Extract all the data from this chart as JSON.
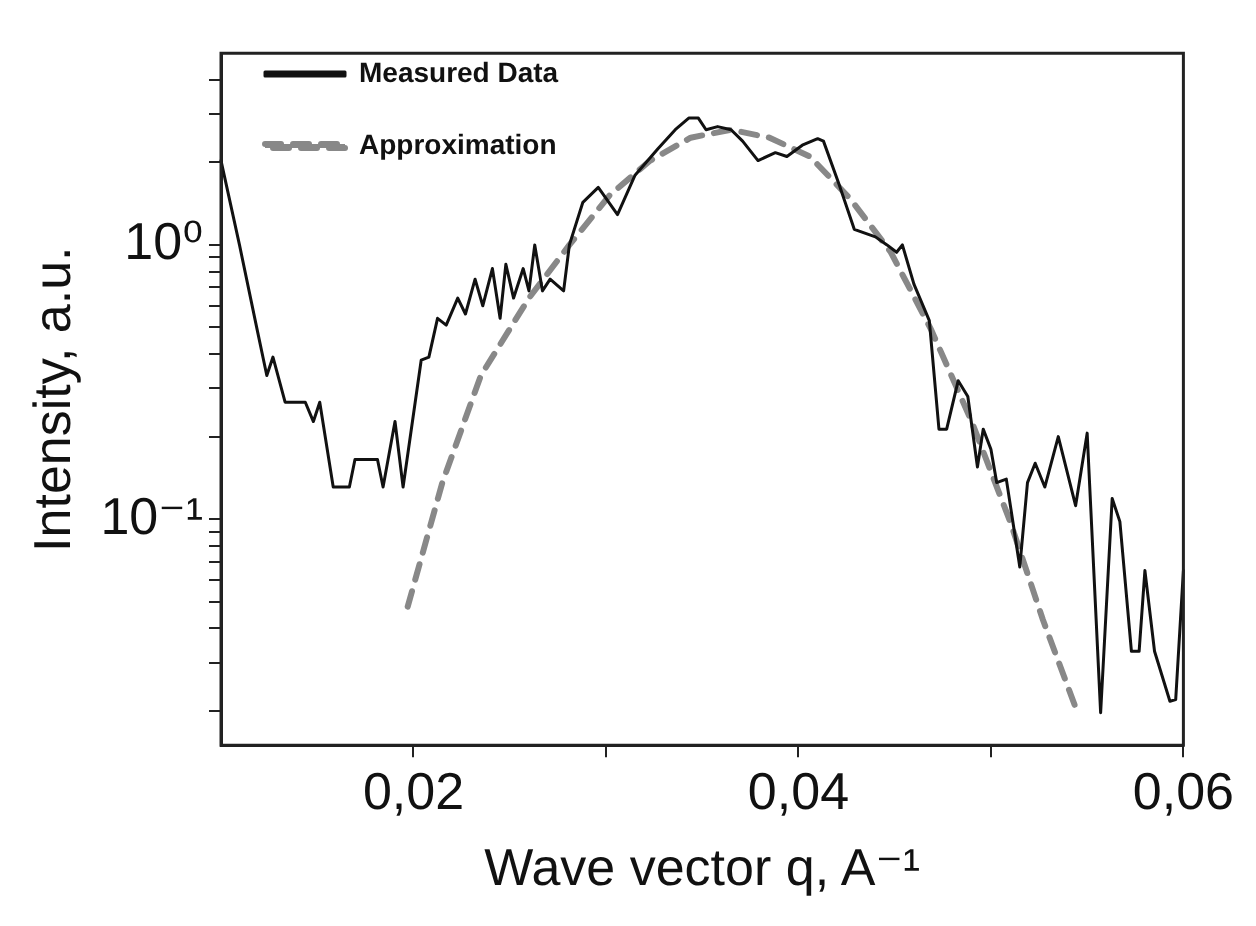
{
  "chart_data": {
    "type": "line",
    "xlabel": "Wave vector q, A⁻¹",
    "ylabel": "Intensity, a.u.",
    "log": "y",
    "grid": false,
    "legend": "top left",
    "xlim": [
      0.01,
      0.06
    ],
    "ylim": [
      0.015,
      5
    ],
    "xticks": [
      {
        "value": 0.02,
        "label": "0,02"
      },
      {
        "value": 0.03,
        "label": null
      },
      {
        "value": 0.04,
        "label": "0,04"
      },
      {
        "value": 0.05,
        "label": null
      },
      {
        "value": 0.06,
        "label": "0,06"
      }
    ],
    "yticks": [
      {
        "value": 0.02,
        "label": null
      },
      {
        "value": 0.03,
        "label": null
      },
      {
        "value": 0.04,
        "label": null
      },
      {
        "value": 0.05,
        "label": null
      },
      {
        "value": 0.06,
        "label": null
      },
      {
        "value": 0.07,
        "label": null
      },
      {
        "value": 0.08,
        "label": null
      },
      {
        "value": 0.09,
        "label": null
      },
      {
        "value": 0.1,
        "label": "10⁻¹"
      },
      {
        "value": 0.2,
        "label": null
      },
      {
        "value": 0.3,
        "label": null
      },
      {
        "value": 0.4,
        "label": null
      },
      {
        "value": 0.5,
        "label": null
      },
      {
        "value": 0.6,
        "label": null
      },
      {
        "value": 0.7,
        "label": null
      },
      {
        "value": 0.8,
        "label": null
      },
      {
        "value": 0.9,
        "label": null
      },
      {
        "value": 1,
        "label": "10⁰"
      },
      {
        "value": 2,
        "label": null
      },
      {
        "value": 3,
        "label": null
      },
      {
        "value": 4,
        "label": null
      }
    ],
    "series": [
      {
        "name": "Measured Data",
        "color": "#111111",
        "line_style": "solid",
        "marker": "none",
        "x": [
          0.01,
          0.01096,
          0.01188,
          0.01238,
          0.0127,
          0.01333,
          0.01438,
          0.0148,
          0.01513,
          0.01583,
          0.01667,
          0.01696,
          0.01813,
          0.01842,
          0.01904,
          0.01946,
          0.0204,
          0.0208,
          0.02125,
          0.0217,
          0.0223,
          0.0227,
          0.0232,
          0.0236,
          0.0241,
          0.0245,
          0.0248,
          0.0252,
          0.0257,
          0.026,
          0.0263,
          0.0267,
          0.0271,
          0.0278,
          0.0281,
          0.0288,
          0.0296,
          0.0306,
          0.0315,
          0.0327,
          0.0336,
          0.0343,
          0.0348,
          0.0352,
          0.0358,
          0.0365,
          0.0371,
          0.0379,
          0.0388,
          0.0394,
          0.0402,
          0.041,
          0.0413,
          0.0421,
          0.0429,
          0.044,
          0.0446,
          0.0451,
          0.0454,
          0.046,
          0.0468,
          0.0473,
          0.0477,
          0.0483,
          0.0488,
          0.0493,
          0.0496,
          0.05,
          0.0503,
          0.0508,
          0.0515,
          0.0519,
          0.0523,
          0.0528,
          0.0535,
          0.0544,
          0.055,
          0.0557,
          0.0563,
          0.0567,
          0.0573,
          0.0577,
          0.058,
          0.0585,
          0.0593,
          0.0596,
          0.06
        ],
        "values": [
          2.03,
          1.0,
          0.49,
          0.334,
          0.39,
          0.267,
          0.267,
          0.227,
          0.267,
          0.131,
          0.131,
          0.165,
          0.165,
          0.131,
          0.227,
          0.131,
          0.38,
          0.39,
          0.54,
          0.51,
          0.64,
          0.56,
          0.75,
          0.6,
          0.82,
          0.54,
          0.85,
          0.64,
          0.82,
          0.68,
          1.0,
          0.68,
          0.75,
          0.68,
          1.0,
          1.43,
          1.62,
          1.29,
          1.79,
          2.24,
          2.63,
          2.9,
          2.9,
          2.63,
          2.7,
          2.63,
          2.39,
          2.03,
          2.17,
          2.1,
          2.31,
          2.44,
          2.39,
          1.67,
          1.14,
          1.07,
          1.0,
          0.94,
          1.0,
          0.72,
          0.53,
          0.213,
          0.213,
          0.32,
          0.28,
          0.155,
          0.213,
          0.18,
          0.136,
          0.14,
          0.067,
          0.136,
          0.16,
          0.131,
          0.2,
          0.112,
          0.206,
          0.0197,
          0.119,
          0.098,
          0.033,
          0.033,
          0.065,
          0.033,
          0.0217,
          0.022,
          0.065
        ]
      },
      {
        "name": "Approximation",
        "color": "#888888",
        "line_style": "dashed",
        "marker": "none",
        "x": [
          0.0197,
          0.0215,
          0.0235,
          0.026,
          0.0281,
          0.0302,
          0.0323,
          0.0344,
          0.0365,
          0.0385,
          0.0406,
          0.0427,
          0.0448,
          0.0469,
          0.049,
          0.051,
          0.0527,
          0.0545
        ],
        "values": [
          0.048,
          0.136,
          0.334,
          0.64,
          1.0,
          1.52,
          2.03,
          2.46,
          2.63,
          2.46,
          2.1,
          1.47,
          0.94,
          0.49,
          0.227,
          0.098,
          0.043,
          0.0197
        ]
      }
    ]
  }
}
